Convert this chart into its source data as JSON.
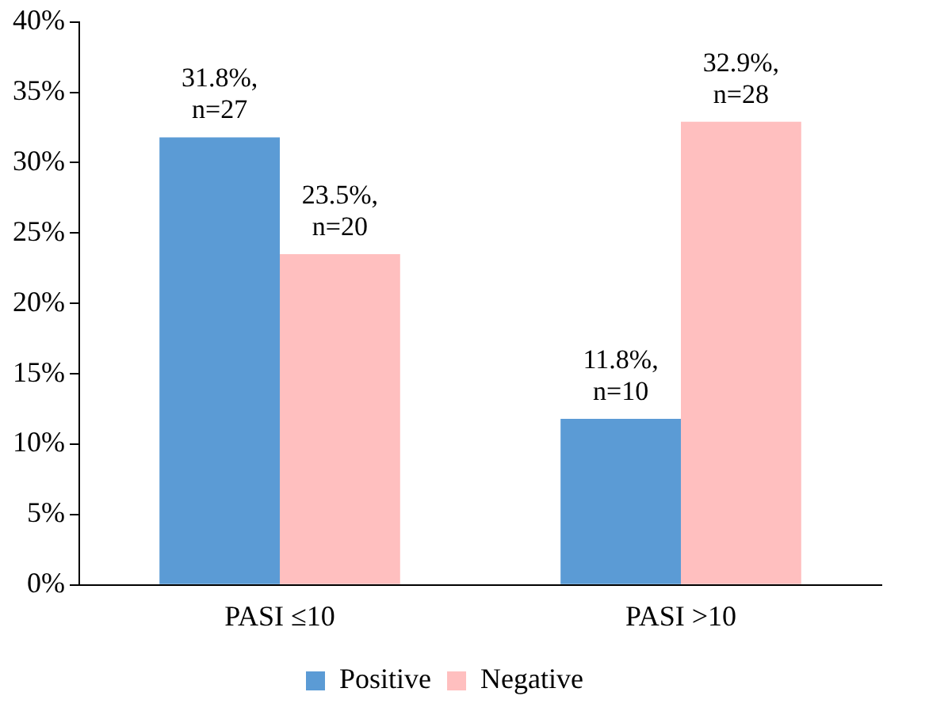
{
  "chart_data": {
    "type": "bar",
    "categories": [
      "PASI ≤10",
      "PASI >10"
    ],
    "series": [
      {
        "name": "Positive",
        "color": "#5b9bd5",
        "values": [
          31.8,
          11.8
        ],
        "value_labels": [
          "31.8%,\nn=27",
          "11.8%,\nn=10"
        ]
      },
      {
        "name": "Negative",
        "color": "#ffbfbf",
        "values": [
          23.5,
          32.9
        ],
        "value_labels": [
          "23.5%,\nn=20",
          "32.9%,\nn=28"
        ]
      }
    ],
    "ylim": [
      0,
      40
    ],
    "yticks": [
      {
        "value": 0,
        "label": "0%"
      },
      {
        "value": 5,
        "label": "5%"
      },
      {
        "value": 10,
        "label": "10%"
      },
      {
        "value": 15,
        "label": "15%"
      },
      {
        "value": 20,
        "label": "20%"
      },
      {
        "value": 25,
        "label": "25%"
      },
      {
        "value": 30,
        "label": "30%"
      },
      {
        "value": 35,
        "label": "35%"
      },
      {
        "value": 40,
        "label": "40%"
      }
    ],
    "grid": false,
    "legend": "bottom"
  }
}
